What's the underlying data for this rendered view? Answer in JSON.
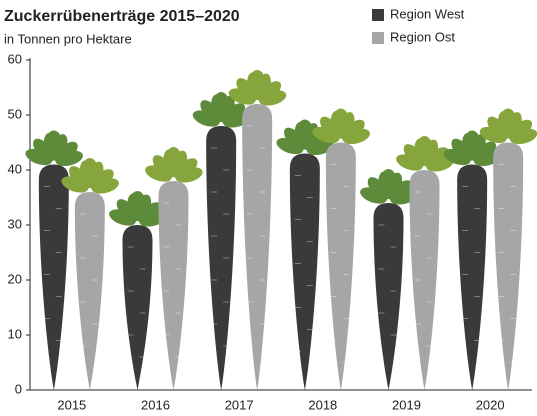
{
  "chart_data": {
    "type": "pictogram-bar",
    "title": "Zuckerrübenerträge 2015–2020",
    "subtitle": "in Tonnen pro Hektare",
    "categories": [
      "2015",
      "2016",
      "2017",
      "2018",
      "2019",
      "2020"
    ],
    "series": [
      {
        "name": "Region West",
        "color": "#3a3a3a",
        "leaf_color": "#5e8b3a",
        "values": [
          41,
          30,
          48,
          43,
          34,
          41
        ]
      },
      {
        "name": "Region Ost",
        "color": "#a6a6a6",
        "leaf_color": "#86a53c",
        "values": [
          36,
          38,
          52,
          45,
          40,
          45
        ]
      }
    ],
    "ylim": [
      0,
      60
    ],
    "yticks": [
      0,
      10,
      20,
      30,
      40,
      50,
      60
    ],
    "grid": false,
    "legend": "top-right"
  }
}
